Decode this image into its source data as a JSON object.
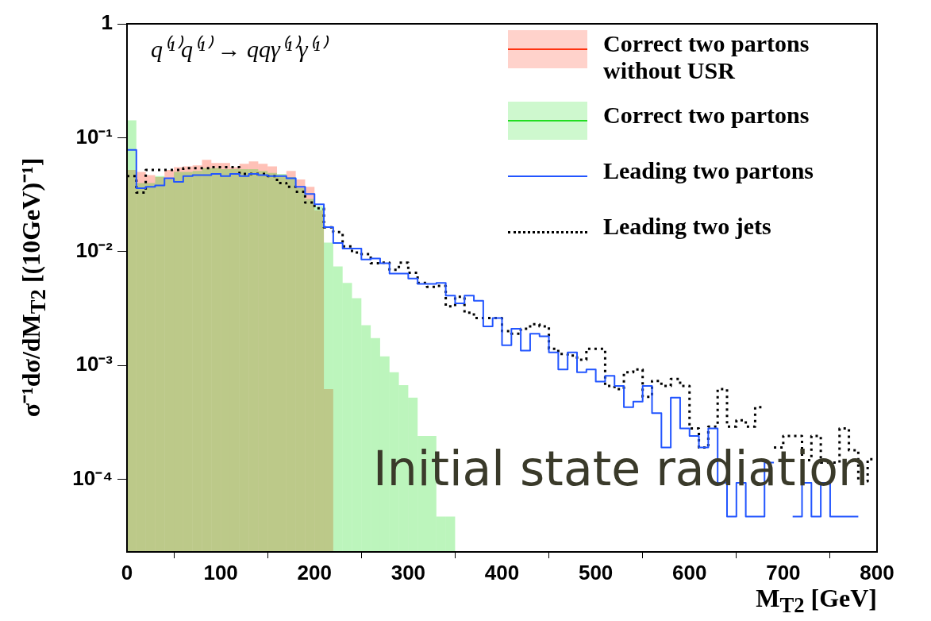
{
  "chart_data": {
    "type": "histogram",
    "xlabel": "M$_{T2}$ [GeV]",
    "ylabel": "σ⁻¹dσ/dM$_{T2}$ [(10GeV)⁻¹]",
    "bins": [
      0,
      10,
      20,
      30,
      40,
      50,
      60,
      70,
      80,
      90,
      100,
      110,
      120,
      130,
      140,
      150,
      160,
      170,
      180,
      190,
      200,
      210,
      220,
      230,
      240,
      250,
      260,
      270,
      280,
      290,
      300,
      310,
      320,
      330,
      340,
      350,
      360,
      370,
      380,
      390,
      400,
      410,
      420,
      430,
      440,
      450,
      460,
      470,
      480,
      490,
      500,
      510,
      520,
      530,
      540,
      550,
      560,
      570,
      580,
      590,
      600,
      610,
      620,
      630,
      640,
      650,
      660,
      670,
      680,
      690,
      700,
      710,
      720,
      730,
      740,
      750,
      760,
      770,
      780,
      790,
      800
    ],
    "series": [
      {
        "name": "Correct two partons without USR",
        "color": "#ff3311",
        "values": [
          0.052,
          0.05,
          0.047,
          0.045,
          0.052,
          0.055,
          0.056,
          0.057,
          0.064,
          0.06,
          0.06,
          0.055,
          0.059,
          0.062,
          0.059,
          0.056,
          0.047,
          0.051,
          0.043,
          0.037,
          0.023,
          0.00062,
          null,
          null,
          null,
          null,
          null,
          null,
          null,
          null,
          null,
          null,
          null,
          null,
          null,
          null,
          null,
          null,
          null,
          null,
          null,
          null,
          null,
          null,
          null,
          null,
          null,
          null,
          null,
          null,
          null,
          null,
          null,
          null,
          null,
          null,
          null,
          null,
          null,
          null,
          null,
          null,
          null,
          null,
          null,
          null,
          null,
          null,
          null,
          null,
          null,
          null,
          null,
          null,
          null,
          null,
          null,
          null,
          null,
          null
        ]
      },
      {
        "name": "Correct two partons",
        "color": "#22dd22",
        "values": [
          0.142,
          0.04,
          0.04,
          0.046,
          0.043,
          0.05,
          0.05,
          0.051,
          0.054,
          0.054,
          0.053,
          0.053,
          0.053,
          0.053,
          0.051,
          0.049,
          0.048,
          0.045,
          0.036,
          0.029,
          0.025,
          0.012,
          0.0074,
          0.0053,
          0.0039,
          0.00225,
          0.00174,
          0.0012,
          0.00087,
          0.00067,
          0.00052,
          0.00024,
          0.00024,
          4.7e-05,
          4.7e-05,
          null,
          null,
          null,
          null,
          null,
          null,
          null,
          null,
          null,
          null,
          null,
          null,
          null,
          null,
          null,
          null,
          null,
          null,
          null,
          null,
          null,
          null,
          null,
          null,
          null,
          null,
          null,
          null,
          null,
          null,
          null,
          null,
          null,
          null,
          null,
          null,
          null,
          null,
          null,
          null,
          null,
          null,
          null,
          null,
          null
        ]
      },
      {
        "name": "Leading two partons",
        "color": "#2255ff",
        "type": "step",
        "x": [
          0,
          10,
          20,
          30,
          40,
          50,
          60,
          70,
          80,
          90,
          100,
          110,
          120,
          130,
          140,
          150,
          160,
          170,
          180,
          190,
          200,
          210,
          220,
          230,
          240,
          250,
          260,
          270,
          280,
          290,
          300,
          310,
          320,
          330,
          340,
          350,
          360,
          370,
          380,
          390,
          400,
          410,
          420,
          430,
          440,
          450,
          460,
          470,
          480,
          490,
          500,
          510,
          520,
          530,
          540,
          550,
          560,
          570,
          580,
          590,
          600,
          610,
          620,
          630,
          640,
          650,
          660,
          670,
          680,
          690,
          700,
          710,
          720,
          730,
          740,
          750,
          760,
          770,
          780
        ],
        "values": [
          0.078,
          0.036,
          0.037,
          0.038,
          0.044,
          0.041,
          0.046,
          0.047,
          0.047,
          0.048,
          0.046,
          0.048,
          0.046,
          0.048,
          0.047,
          0.046,
          0.046,
          0.044,
          0.037,
          0.032,
          0.026,
          0.0164,
          0.0119,
          0.0106,
          0.0106,
          0.0085,
          0.0087,
          0.0079,
          0.0064,
          0.0064,
          0.0058,
          0.0052,
          0.0052,
          0.0053,
          0.0041,
          0.0035,
          0.0041,
          0.0037,
          0.0022,
          0.0026,
          0.0015,
          0.0021,
          0.00135,
          0.0019,
          0.0018,
          0.0013,
          0.00092,
          0.0013,
          0.00087,
          0.00092,
          0.00072,
          0.00081,
          0.00066,
          0.00043,
          0.00048,
          0.00066,
          0.00038,
          0.00019,
          0.00052,
          0.00028,
          0.00024,
          0.00019,
          0.00028,
          9.3e-05,
          4.7e-05,
          9.3e-05,
          4.7e-05,
          4.7e-05,
          0.00014,
          null,
          null,
          4.7e-05,
          9.3e-05,
          4.7e-05,
          9.3e-05,
          4.7e-05,
          4.7e-05,
          4.7e-05,
          4.7e-05
        ]
      },
      {
        "name": "Leading two jets",
        "color": "#000000",
        "type": "step",
        "line_style": "dotted",
        "x": [
          0,
          10,
          20,
          30,
          40,
          50,
          60,
          70,
          80,
          90,
          100,
          110,
          120,
          130,
          140,
          150,
          160,
          170,
          180,
          190,
          200,
          210,
          220,
          230,
          240,
          250,
          260,
          270,
          280,
          290,
          300,
          310,
          320,
          330,
          340,
          350,
          360,
          370,
          380,
          390,
          400,
          410,
          420,
          430,
          440,
          450,
          460,
          470,
          480,
          490,
          500,
          510,
          520,
          530,
          540,
          550,
          560,
          570,
          580,
          590,
          600,
          610,
          620,
          630,
          640,
          650,
          660,
          670,
          680,
          690,
          700,
          710,
          720,
          730,
          740,
          750,
          760,
          770,
          780,
          790,
          800
        ],
        "values": [
          0.046,
          0.033,
          0.052,
          0.052,
          0.052,
          0.052,
          0.054,
          0.054,
          0.054,
          0.055,
          0.055,
          0.055,
          0.048,
          0.048,
          0.048,
          0.046,
          0.04,
          0.037,
          0.0335,
          0.027,
          0.024,
          0.0163,
          0.0148,
          0.0111,
          0.0098,
          0.0095,
          0.0079,
          0.008,
          0.0069,
          0.008,
          0.0065,
          0.0053,
          0.0049,
          0.005,
          0.0033,
          0.004,
          0.0029,
          0.0026,
          0.0026,
          0.0026,
          0.002,
          0.0019,
          0.0021,
          0.0023,
          0.0022,
          0.0014,
          0.00126,
          0.00122,
          0.00112,
          0.0014,
          0.0014,
          0.00066,
          0.00062,
          0.00087,
          0.00092,
          0.00053,
          0.00073,
          0.00066,
          0.00076,
          0.00066,
          0.00028,
          0.00019,
          0.00029,
          0.00062,
          0.00029,
          0.00033,
          0.00029,
          0.00043,
          null,
          0.00019,
          0.00024,
          0.00024,
          0.000147,
          0.00024,
          0.00014,
          0.00014,
          0.00028,
          0.00018,
          9.6e-05,
          0.00015,
          0.00015
        ]
      }
    ],
    "xlim": [
      0,
      800
    ],
    "xticks": [
      0,
      100,
      200,
      300,
      400,
      500,
      600,
      700,
      800
    ],
    "ylim": [
      2.3e-05,
      1
    ],
    "yticks": [
      1,
      {
        "value": 0.1,
        "label": "10⁻¹"
      },
      {
        "value": 0.01,
        "label": "10⁻²"
      },
      {
        "value": 0.001,
        "label": "10⁻³"
      },
      {
        "value": 0.0001,
        "label": "10⁻⁴"
      }
    ],
    "log": "y",
    "grid": false,
    "legend": "top right",
    "line_style": "solid",
    "annotations": [
      "q⁽¹⁾q⁽¹⁾ → qqγ⁽¹⁾γ⁽¹⁾",
      "Initial state radiation"
    ]
  }
}
